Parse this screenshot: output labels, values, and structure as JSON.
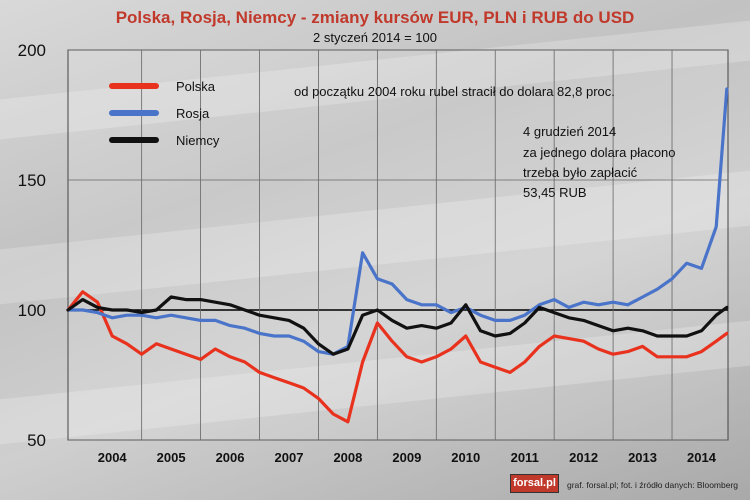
{
  "chart_data": {
    "type": "line",
    "title": "Polska, Rosja, Niemcy - zmiany kursów EUR, PLN i RUB do USD",
    "subtitle": "2 styczeń 2014 = 100",
    "xlabel": "",
    "ylabel": "",
    "ylim": [
      50,
      200
    ],
    "xlim": [
      2003.75,
      2014.95
    ],
    "yticks": [
      50,
      100,
      150,
      200
    ],
    "xticks": [
      "2004",
      "2005",
      "2006",
      "2007",
      "2008",
      "2009",
      "2010",
      "2011",
      "2012",
      "2013",
      "2014"
    ],
    "grid": true,
    "reference_line": 100,
    "legend_position": "top-left",
    "x": [
      2003.75,
      2004.0,
      2004.25,
      2004.5,
      2004.75,
      2005.0,
      2005.25,
      2005.5,
      2005.75,
      2006.0,
      2006.25,
      2006.5,
      2006.75,
      2007.0,
      2007.25,
      2007.5,
      2007.75,
      2008.0,
      2008.25,
      2008.5,
      2008.75,
      2009.0,
      2009.25,
      2009.5,
      2009.75,
      2010.0,
      2010.25,
      2010.5,
      2010.75,
      2011.0,
      2011.25,
      2011.5,
      2011.75,
      2012.0,
      2012.25,
      2012.5,
      2012.75,
      2013.0,
      2013.25,
      2013.5,
      2013.75,
      2014.0,
      2014.25,
      2014.5,
      2014.75,
      2014.93
    ],
    "series": [
      {
        "name": "Polska",
        "color": "#e8321e",
        "values": [
          100,
          107,
          103,
          90,
          87,
          83,
          87,
          85,
          83,
          81,
          85,
          82,
          80,
          76,
          74,
          72,
          70,
          66,
          60,
          57,
          80,
          95,
          88,
          82,
          80,
          82,
          85,
          90,
          80,
          78,
          76,
          80,
          86,
          90,
          89,
          88,
          85,
          83,
          84,
          86,
          82,
          82,
          82,
          84,
          88,
          91
        ]
      },
      {
        "name": "Rosja",
        "color": "#4a74c9",
        "values": [
          100,
          100,
          99,
          97,
          98,
          98,
          97,
          98,
          97,
          96,
          96,
          94,
          93,
          91,
          90,
          90,
          88,
          84,
          83,
          86,
          122,
          112,
          110,
          104,
          102,
          102,
          99,
          101,
          98,
          96,
          96,
          98,
          102,
          104,
          101,
          103,
          102,
          103,
          102,
          105,
          108,
          112,
          118,
          116,
          132,
          185
        ]
      },
      {
        "name": "Niemcy",
        "color": "#111111",
        "values": [
          100,
          104,
          101,
          100,
          100,
          99,
          100,
          105,
          104,
          104,
          103,
          102,
          100,
          98,
          97,
          96,
          93,
          87,
          83,
          85,
          98,
          100,
          96,
          93,
          94,
          93,
          95,
          102,
          92,
          90,
          91,
          95,
          101,
          99,
          97,
          96,
          94,
          92,
          93,
          92,
          90,
          90,
          90,
          92,
          98,
          101
        ]
      }
    ],
    "annotations": [
      "od początku 2004 roku rubel stracił do dolara 82,8 proc.",
      "4 grudzień 2014",
      "za jednego dolara płacono",
      "trzeba było zapłacić",
      "53,45 RUB"
    ]
  },
  "credit": "graf. forsal.pl;  fot. i źródło danych: Bloomberg",
  "logo_text": "forsal.pl"
}
